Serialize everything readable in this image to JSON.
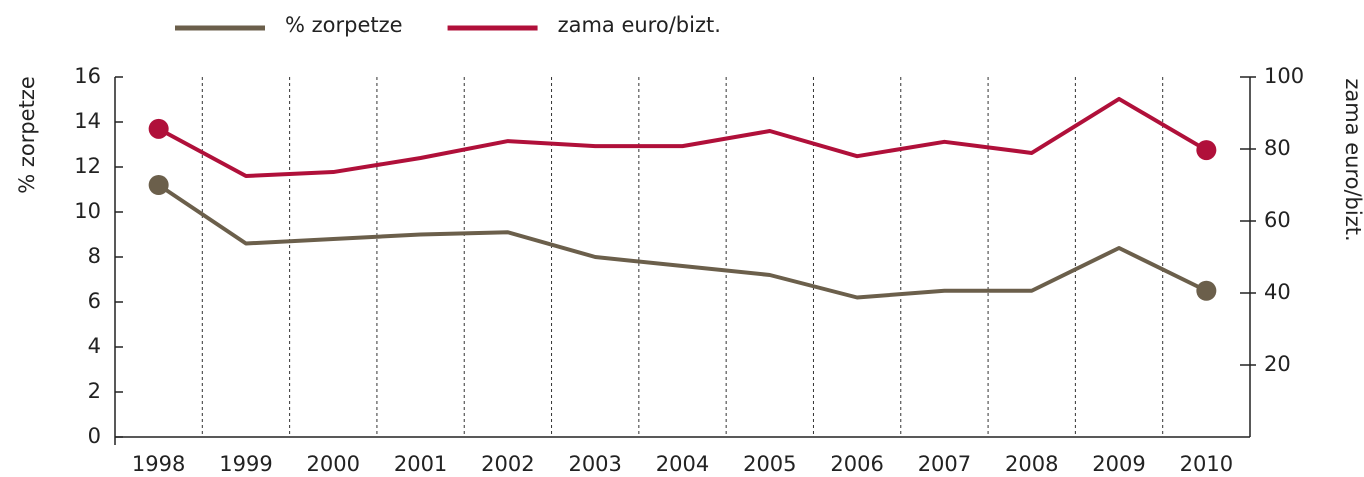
{
  "chart_data": {
    "type": "line",
    "categories": [
      "1998",
      "1999",
      "2000",
      "2001",
      "2002",
      "2003",
      "2004",
      "2005",
      "2006",
      "2007",
      "2008",
      "2009",
      "2010"
    ],
    "series": [
      {
        "name": "% zorpetze",
        "color": "#6b5f4b",
        "values": [
          11.2,
          8.6,
          8.8,
          9.0,
          9.1,
          8.0,
          7.6,
          7.2,
          6.2,
          6.5,
          6.5,
          8.4,
          6.5
        ]
      },
      {
        "name": "zama euro/bizt.",
        "color": "#b0103a",
        "axis": "y2",
        "values": [
          85.6,
          72.5,
          73.6,
          77.5,
          82.2,
          80.8,
          80.8,
          85.0,
          78.0,
          82.0,
          78.9,
          93.9,
          79.7
        ]
      }
    ],
    "ylabel": "% zorpetze",
    "y2label": "zama euro/bizt.",
    "ylim": [
      0,
      16
    ],
    "yticks": [
      0,
      2,
      4,
      6,
      8,
      10,
      12,
      14,
      16
    ],
    "y2lim": [
      0,
      100
    ],
    "y2ticks": [
      20,
      40,
      60,
      80,
      100
    ],
    "legend": "top"
  }
}
